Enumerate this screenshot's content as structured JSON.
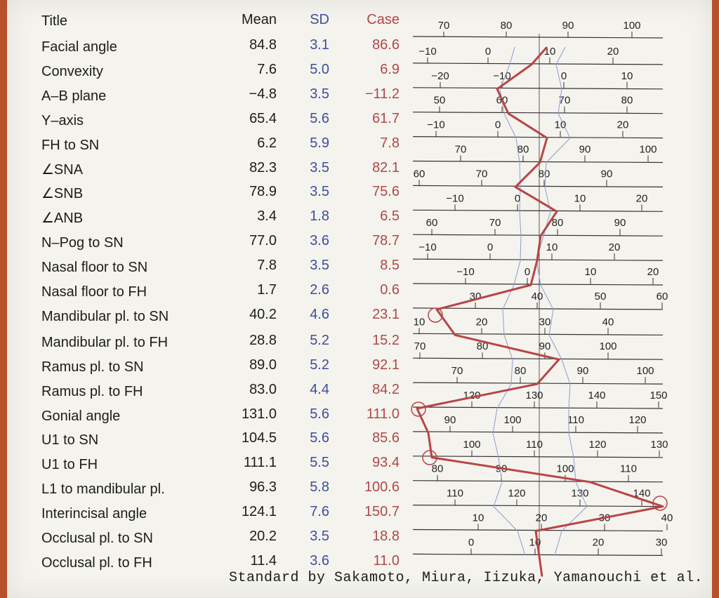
{
  "headers": {
    "title": "Title",
    "mean": "Mean",
    "sd": "SD",
    "case": "Case"
  },
  "colors": {
    "mean_text": "#1c1c1c",
    "sd_text": "#3d4f9a",
    "case_text": "#b04848",
    "case_line": "#b84545",
    "sd_band": "#8f9bd0"
  },
  "rows": [
    {
      "title": "Facial angle",
      "mean": "84.8",
      "sd": "3.1",
      "case": "86.6"
    },
    {
      "title": "Convexity",
      "mean": "7.6",
      "sd": "5.0",
      "case": "6.9"
    },
    {
      "title": "A–B plane",
      "mean": "−4.8",
      "sd": "3.5",
      "case": "−11.2"
    },
    {
      "title": "Y–axis",
      "mean": "65.4",
      "sd": "5.6",
      "case": "61.7"
    },
    {
      "title": "FH to SN",
      "mean": "6.2",
      "sd": "5.9",
      "case": "7.8"
    },
    {
      "title": "∠SNA",
      "mean": "82.3",
      "sd": "3.5",
      "case": "82.1"
    },
    {
      "title": "∠SNB",
      "mean": "78.9",
      "sd": "3.5",
      "case": "75.6"
    },
    {
      "title": "∠ANB",
      "mean": "3.4",
      "sd": "1.8",
      "case": "6.5"
    },
    {
      "title": "N–Pog to SN",
      "mean": "77.0",
      "sd": "3.6",
      "case": "78.7"
    },
    {
      "title": "Nasal floor to SN",
      "mean": "7.8",
      "sd": "3.5",
      "case": "8.5"
    },
    {
      "title": "Nasal floor to FH",
      "mean": "1.7",
      "sd": "2.6",
      "case": "0.6"
    },
    {
      "title": "Mandibular pl. to SN",
      "mean": "40.2",
      "sd": "4.6",
      "case": "23.1"
    },
    {
      "title": "Mandibular pl. to FH",
      "mean": "28.8",
      "sd": "5.2",
      "case": "15.2"
    },
    {
      "title": "Ramus pl. to SN",
      "mean": "89.0",
      "sd": "5.2",
      "case": "92.1"
    },
    {
      "title": "Ramus pl. to FH",
      "mean": "83.0",
      "sd": "4.4",
      "case": "84.2"
    },
    {
      "title": "Gonial angle",
      "mean": "131.0",
      "sd": "5.6",
      "case": "111.0"
    },
    {
      "title": "U1 to SN",
      "mean": "104.5",
      "sd": "5.6",
      "case": "85.6"
    },
    {
      "title": "U1 to FH",
      "mean": "111.1",
      "sd": "5.5",
      "case": "93.4"
    },
    {
      "title": "L1 to mandibular pl.",
      "mean": "96.3",
      "sd": "5.8",
      "case": "100.6"
    },
    {
      "title": "Interincisal angle",
      "mean": "124.1",
      "sd": "7.6",
      "case": "150.7"
    },
    {
      "title": "Occlusal pl. to SN",
      "mean": "20.2",
      "sd": "3.5",
      "case": "18.8"
    },
    {
      "title": "Occlusal pl. to FH",
      "mean": "11.4",
      "sd": "3.6",
      "case": "11.0"
    }
  ],
  "chart_data": {
    "type": "line",
    "top_scale_labels": [
      "70",
      "80",
      "90",
      "100"
    ],
    "scales": [
      {
        "labels": [
          "−10",
          "0",
          "10",
          "20"
        ]
      },
      {
        "labels": [
          "−20",
          "−10",
          "0",
          "10"
        ]
      },
      {
        "labels": [
          "50",
          "60",
          "70",
          "80"
        ]
      },
      {
        "labels": [
          "−10",
          "0",
          "10",
          "20"
        ]
      },
      {
        "labels": [
          "70",
          "80",
          "90",
          "100"
        ]
      },
      {
        "labels": [
          "60",
          "70",
          "80",
          "90"
        ]
      },
      {
        "labels": [
          "−10",
          "0",
          "10",
          "20"
        ]
      },
      {
        "labels": [
          "60",
          "70",
          "80",
          "90"
        ]
      },
      {
        "labels": [
          "−10",
          "0",
          "10",
          "20"
        ]
      },
      {
        "labels": [
          "−10",
          "0",
          "10",
          "20"
        ]
      },
      {
        "labels": [
          "30",
          "40",
          "50",
          "60"
        ]
      },
      {
        "labels": [
          "10",
          "20",
          "30",
          "40"
        ]
      },
      {
        "labels": [
          "70",
          "80",
          "90",
          "100"
        ]
      },
      {
        "labels": [
          "70",
          "80",
          "90",
          "100"
        ]
      },
      {
        "labels": [
          "120",
          "130",
          "140",
          "150"
        ]
      },
      {
        "labels": [
          "90",
          "100",
          "110",
          "120"
        ]
      },
      {
        "labels": [
          "100",
          "110",
          "120",
          "130"
        ]
      },
      {
        "labels": [
          "80",
          "90",
          "100",
          "110"
        ]
      },
      {
        "labels": [
          "110",
          "120",
          "130",
          "140"
        ]
      },
      {
        "labels": [
          "10",
          "20",
          "30",
          "40"
        ]
      },
      {
        "labels": [
          "0",
          "10",
          "20",
          "30"
        ]
      }
    ],
    "series": [
      {
        "values": [
          86.6,
          6.9,
          -11.2,
          61.7,
          7.8,
          82.1,
          75.6,
          6.5,
          78.7,
          8.5,
          0.6,
          23.1,
          15.2,
          92.1,
          84.2,
          111.0,
          85.6,
          93.4,
          100.6,
          150.7,
          18.8,
          11.0
        ]
      }
    ]
  },
  "footer": "Standard by Sakamoto, Miura, Iizuka, Yamanouchi et al."
}
